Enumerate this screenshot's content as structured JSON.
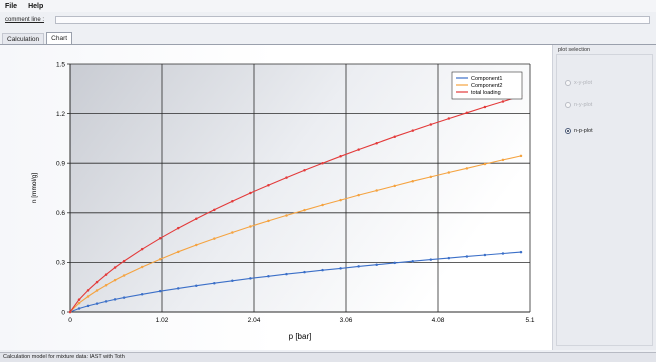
{
  "menu": {
    "file": "File",
    "help": "Help"
  },
  "comment": {
    "label": "comment line :",
    "value": ""
  },
  "tabs": [
    "Calculation",
    "Chart"
  ],
  "plot_selection": {
    "title": "plot selection",
    "options": [
      {
        "label": "x-y-plot",
        "checked": false,
        "enabled": false
      },
      {
        "label": "n-y-plot",
        "checked": false,
        "enabled": false
      },
      {
        "label": "n-p-plot",
        "checked": true,
        "enabled": true
      }
    ]
  },
  "status": "Calculation model for mixture data: IAST with Toth",
  "colors": {
    "component1": "#3b6fc8",
    "component2": "#f5a340",
    "total": "#e33a3a"
  },
  "chart_data": {
    "type": "line",
    "xlabel": "p [bar]",
    "ylabel": "n [mmol/g]",
    "xlim": [
      0,
      5.1
    ],
    "ylim": [
      0,
      1.5
    ],
    "xticks": [
      "0",
      "1.02",
      "2.04",
      "3.06",
      "4.08",
      "5.1"
    ],
    "yticks": [
      "0",
      "0.3",
      "0.6",
      "0.9",
      "1.2",
      "1.5"
    ],
    "grid": true,
    "legend_position": "top-right",
    "x": [
      0,
      0.1,
      0.2,
      0.3,
      0.4,
      0.5,
      0.6,
      0.8,
      1.0,
      1.2,
      1.4,
      1.6,
      1.8,
      2.0,
      2.2,
      2.4,
      2.6,
      2.8,
      3.0,
      3.2,
      3.4,
      3.6,
      3.8,
      4.0,
      4.2,
      4.4,
      4.6,
      4.8,
      5.0
    ],
    "series": [
      {
        "name": "Component1",
        "values": [
          0,
          0.021,
          0.037,
          0.051,
          0.064,
          0.076,
          0.087,
          0.107,
          0.126,
          0.143,
          0.159,
          0.174,
          0.189,
          0.203,
          0.216,
          0.229,
          0.241,
          0.253,
          0.264,
          0.276,
          0.286,
          0.297,
          0.307,
          0.317,
          0.326,
          0.336,
          0.345,
          0.354,
          0.362
        ]
      },
      {
        "name": "Component2",
        "values": [
          0,
          0.054,
          0.094,
          0.13,
          0.162,
          0.193,
          0.221,
          0.272,
          0.319,
          0.364,
          0.405,
          0.444,
          0.481,
          0.517,
          0.551,
          0.584,
          0.616,
          0.647,
          0.677,
          0.707,
          0.735,
          0.763,
          0.791,
          0.817,
          0.844,
          0.869,
          0.895,
          0.92,
          0.944
        ]
      },
      {
        "name": "total loading",
        "values": [
          0,
          0.075,
          0.131,
          0.181,
          0.226,
          0.269,
          0.308,
          0.38,
          0.446,
          0.507,
          0.564,
          0.618,
          0.67,
          0.72,
          0.767,
          0.813,
          0.857,
          0.9,
          0.942,
          0.982,
          1.021,
          1.06,
          1.097,
          1.134,
          1.17,
          1.205,
          1.24,
          1.273,
          1.307
        ]
      }
    ]
  }
}
